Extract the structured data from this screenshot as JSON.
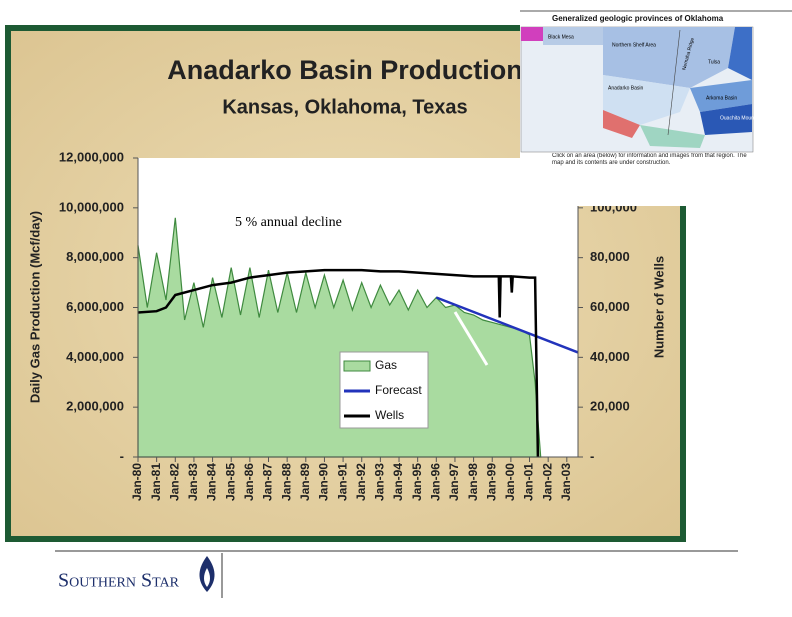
{
  "chart_data": {
    "type": "line",
    "title": "Anadarko Basin Production",
    "subtitle": "Kansas, Oklahoma, Texas",
    "ylabel": "Daily Gas Production (Mcf/day)",
    "y2label": "Number of Wells",
    "annotation": "5 % annual decline",
    "xlim": [
      1980,
      2003.6
    ],
    "xticks": [
      {
        "value": 1980,
        "label": "Jan-80"
      },
      {
        "value": 1981,
        "label": "Jan-81"
      },
      {
        "value": 1982,
        "label": "Jan-82"
      },
      {
        "value": 1983,
        "label": "Jan-83"
      },
      {
        "value": 1984,
        "label": "Jan-84"
      },
      {
        "value": 1985,
        "label": "Jan-85"
      },
      {
        "value": 1986,
        "label": "Jan-86"
      },
      {
        "value": 1987,
        "label": "Jan-87"
      },
      {
        "value": 1988,
        "label": "Jan-88"
      },
      {
        "value": 1989,
        "label": "Jan-89"
      },
      {
        "value": 1990,
        "label": "Jan-90"
      },
      {
        "value": 1991,
        "label": "Jan-91"
      },
      {
        "value": 1992,
        "label": "Jan-92"
      },
      {
        "value": 1993,
        "label": "Jan-93"
      },
      {
        "value": 1994,
        "label": "Jan-94"
      },
      {
        "value": 1995,
        "label": "Jan-95"
      },
      {
        "value": 1996,
        "label": "Jan-96"
      },
      {
        "value": 1997,
        "label": "Jan-97"
      },
      {
        "value": 1998,
        "label": "Jan-98"
      },
      {
        "value": 1999,
        "label": "Jan-99"
      },
      {
        "value": 2000,
        "label": "Jan-00"
      },
      {
        "value": 2001,
        "label": "Jan-01"
      },
      {
        "value": 2002,
        "label": "Jan-02"
      },
      {
        "value": 2003,
        "label": "Jan-03"
      }
    ],
    "ylim": [
      0,
      12000000
    ],
    "yticks": [
      {
        "value": 0,
        "label": "-"
      },
      {
        "value": 2000000,
        "label": "2,000,000"
      },
      {
        "value": 4000000,
        "label": "4,000,000"
      },
      {
        "value": 6000000,
        "label": "6,000,000"
      },
      {
        "value": 8000000,
        "label": "8,000,000"
      },
      {
        "value": 10000000,
        "label": "10,000,000"
      },
      {
        "value": 12000000,
        "label": "12,000,000"
      }
    ],
    "y2lim": [
      0,
      120000
    ],
    "y2ticks": [
      {
        "value": 0,
        "label": "-"
      },
      {
        "value": 20000,
        "label": "20,000"
      },
      {
        "value": 40000,
        "label": "40,000"
      },
      {
        "value": 60000,
        "label": "60,000"
      },
      {
        "value": 80000,
        "label": "80,000"
      },
      {
        "value": 100000,
        "label": "100,000"
      }
    ],
    "grid": false,
    "series": [
      {
        "name": "Gas",
        "kind": "area",
        "color": "#a9dba0",
        "line_color": "#3f8a3f",
        "x": [
          1980,
          1980.5,
          1981,
          1981.5,
          1982,
          1982.5,
          1983,
          1983.5,
          1984,
          1984.5,
          1985,
          1985.5,
          1986,
          1986.5,
          1987,
          1987.5,
          1988,
          1988.5,
          1989,
          1989.5,
          1990,
          1990.5,
          1991,
          1991.5,
          1992,
          1992.5,
          1993,
          1993.5,
          1994,
          1994.5,
          1995,
          1995.5,
          1996,
          1996.5,
          1997,
          1997.5,
          1998,
          1998.5,
          1999,
          1999.5,
          2000,
          2000.5,
          2001,
          2001.3,
          2001.6
        ],
        "values": [
          8500000,
          6000000,
          8200000,
          6300000,
          9600000,
          5500000,
          7000000,
          5200000,
          7200000,
          5600000,
          7600000,
          5700000,
          7600000,
          5600000,
          7500000,
          5800000,
          7400000,
          5800000,
          7400000,
          6000000,
          7300000,
          6000000,
          7100000,
          5900000,
          7000000,
          6000000,
          6900000,
          6100000,
          6700000,
          5900000,
          6700000,
          6000000,
          6400000,
          6000000,
          6100000,
          5800000,
          5700000,
          5500000,
          5400000,
          5300000,
          5200000,
          5100000,
          4900000,
          3000000,
          0
        ]
      },
      {
        "name": "Forecast",
        "kind": "line",
        "color": "#2233bb",
        "x": [
          1996,
          2003.6
        ],
        "values": [
          6400000,
          4200000
        ]
      },
      {
        "name": "Wells",
        "kind": "line",
        "color": "#000000",
        "axis": "y2",
        "x": [
          1980,
          1981,
          1981.5,
          1982,
          1983,
          1984,
          1985,
          1986,
          1987,
          1988,
          1989,
          1990,
          1991,
          1992,
          1993,
          1994,
          1995,
          1996,
          1997,
          1998,
          1999,
          1999.35,
          1999.4,
          1999.45,
          2000,
          2000.05,
          2000.1,
          2001,
          2001.3,
          2001.45
        ],
        "values": [
          58000,
          58500,
          60000,
          65000,
          67000,
          69000,
          70000,
          72000,
          73000,
          74000,
          74500,
          75000,
          75000,
          75000,
          74500,
          74500,
          74000,
          73500,
          73000,
          72500,
          72500,
          72500,
          56000,
          72500,
          72500,
          66000,
          72500,
          72000,
          72000,
          0
        ]
      }
    ]
  },
  "inset": {
    "title": "Generalized geologic provinces of Oklahoma",
    "labels": [
      "Black Mesa",
      "Northern Shelf Area",
      "Nemaha Ridge",
      "Tulsa",
      "Anadarko Basin",
      "Arkoma Basin",
      "Ouachita Mountains"
    ],
    "caption": "Click on an area (below) for information and images from that region. The map and its contents are under construction."
  },
  "footer": {
    "logo": "Southern Star"
  }
}
